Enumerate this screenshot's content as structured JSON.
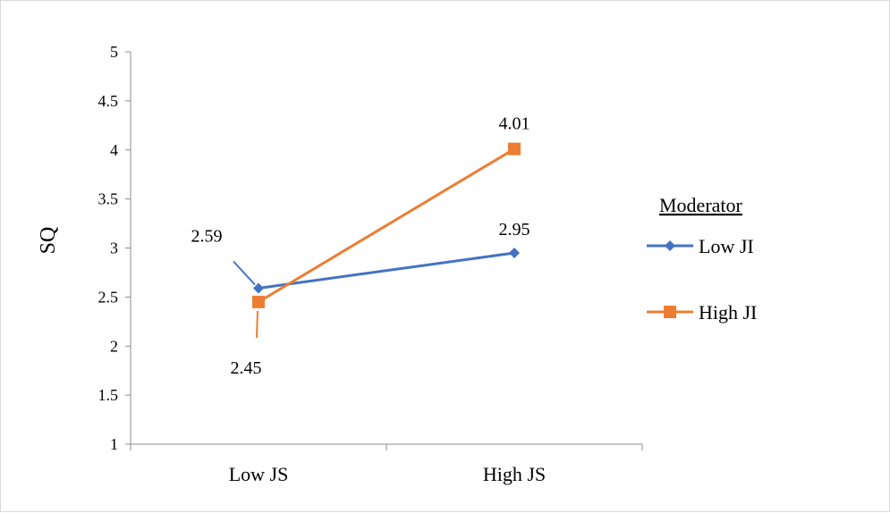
{
  "chart_data": {
    "type": "line",
    "categories": [
      "Low JS",
      "High JS"
    ],
    "ylabel": "SQ",
    "xlabel": "",
    "title": "",
    "ylim": [
      1,
      5
    ],
    "ytick_step": 0.5,
    "yticks": [
      "1",
      "1.5",
      "2",
      "2.5",
      "3",
      "3.5",
      "4",
      "4.5",
      "5"
    ],
    "grid": false,
    "legend_title": "Moderator",
    "legend_position": "right",
    "series": [
      {
        "name": "Low JI",
        "values": [
          2.59,
          2.95
        ],
        "labels": [
          "2.59",
          "2.95"
        ],
        "color": "#4472C4",
        "marker": "diamond"
      },
      {
        "name": "High JI",
        "values": [
          2.45,
          4.01
        ],
        "labels": [
          "2.45",
          "4.01"
        ],
        "color": "#ED7D31",
        "marker": "square"
      }
    ]
  }
}
